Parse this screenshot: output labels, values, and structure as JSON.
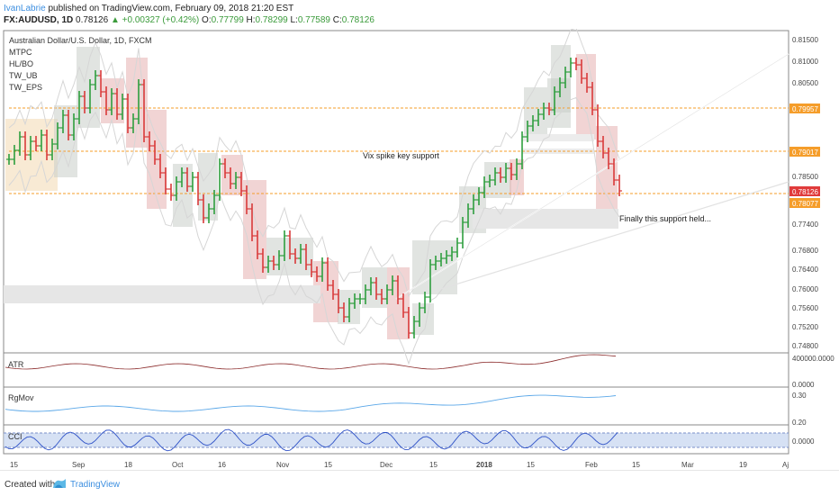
{
  "header": {
    "author": "IvanLabrie",
    "published_text": "published on TradingView.com, February 09, 2018 21:20 EST",
    "symbol": "FX:AUDUSD, 1D",
    "last": "0.78126",
    "change_arrow": "▲",
    "change": "+0.00327 (+0.42%)",
    "o_label": "O:",
    "o_value": "0.77799",
    "h_label": "H:",
    "h_value": "0.78299",
    "l_label": "L:",
    "l_value": "0.77589",
    "c_label": "C:",
    "c_value": "0.78126"
  },
  "chart": {
    "title": "Australian Dollar/U.S. Dollar, 1D, FXCM",
    "indicators": [
      "MTPC",
      "HL/BO",
      "TW_UB",
      "TW_EPS"
    ],
    "annotations": {
      "vix": "Vix spike key support",
      "support": "Finally this support held..."
    },
    "price_axis": [
      "0.81500",
      "0.81000",
      "0.80500",
      "0.78500",
      "0.77400",
      "0.76800",
      "0.76400",
      "0.76000",
      "0.75600",
      "0.75200",
      "0.74800"
    ],
    "price_tags": [
      {
        "label": "0.79957",
        "color": "#f59d2a"
      },
      {
        "label": "0.79017",
        "color": "#f59d2a"
      },
      {
        "label": "0.78126",
        "color": "#e03b3b"
      },
      {
        "label": "0.78077",
        "color": "#f59d2a"
      }
    ],
    "time_axis": [
      "15",
      "Sep",
      "18",
      "Oct",
      "16",
      "Nov",
      "15",
      "Dec",
      "15",
      "2018",
      "15",
      "Feb",
      "15",
      "Mar",
      "19",
      "Aj"
    ],
    "panes": {
      "atr": {
        "label": "ATR",
        "axis": [
          "400000.0000",
          "0.0000"
        ]
      },
      "rgmov": {
        "label": "RgMov",
        "axis": [
          "0.30",
          "0.20"
        ]
      },
      "cci": {
        "label": "CCI",
        "axis": [
          "0.0000"
        ]
      }
    },
    "colors": {
      "up": "#2e9e3e",
      "down": "#d93a3a",
      "level": "#f59d2a",
      "tag_red": "#e03b3b"
    }
  },
  "footer": {
    "created_with": "Created with",
    "brand": "TradingView"
  }
}
